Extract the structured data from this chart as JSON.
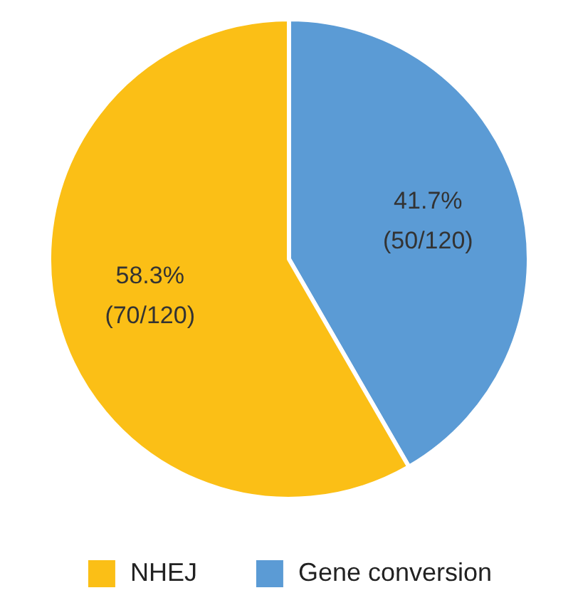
{
  "chart_data": {
    "type": "pie",
    "categories": [
      "Gene conversion",
      "NHEJ"
    ],
    "values": [
      50,
      70
    ],
    "colors": [
      "#5b9bd5",
      "#fbbf16"
    ],
    "value_labels": [
      "41.7%\n(50/120)",
      "58.3%\n(70/120)"
    ],
    "legend": "bottom"
  }
}
